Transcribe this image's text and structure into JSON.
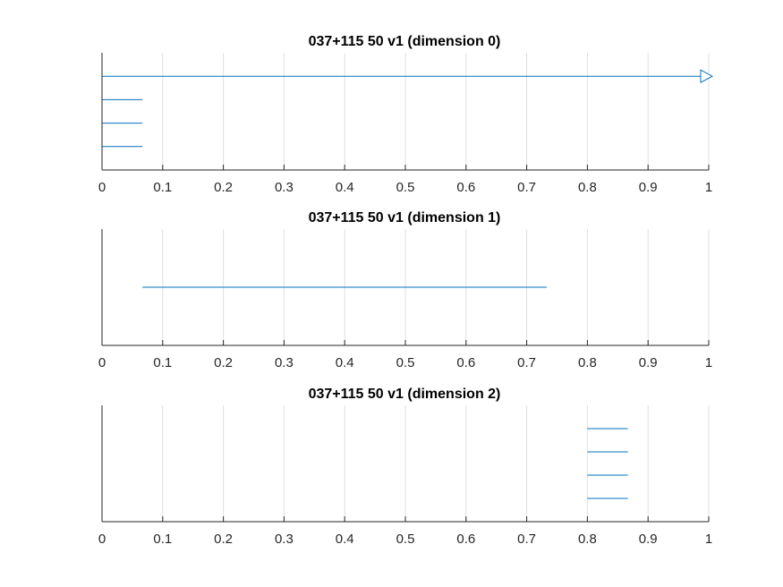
{
  "colors": {
    "series": "#0072BD",
    "grid": "#dfdfdf",
    "axis": "#262626"
  },
  "chart_data": [
    {
      "type": "barcode",
      "title": "037+115 50 v1 (dimension 0)",
      "xlim": [
        0,
        1
      ],
      "xticks": [
        0,
        0.1,
        0.2,
        0.3,
        0.4,
        0.5,
        0.6,
        0.7,
        0.8,
        0.9,
        1
      ],
      "xtick_labels": [
        "0",
        "0.1",
        "0.2",
        "0.3",
        "0.4",
        "0.5",
        "0.6",
        "0.7",
        "0.8",
        "0.9",
        "1"
      ],
      "grid": true,
      "intervals": [
        {
          "birth": 0,
          "death": 1,
          "infinite": true
        },
        {
          "birth": 0,
          "death": 0.0667,
          "infinite": false
        },
        {
          "birth": 0,
          "death": 0.0667,
          "infinite": false
        },
        {
          "birth": 0,
          "death": 0.0667,
          "infinite": false
        }
      ]
    },
    {
      "type": "barcode",
      "title": "037+115 50 v1 (dimension 1)",
      "xlim": [
        0,
        1
      ],
      "xticks": [
        0,
        0.1,
        0.2,
        0.3,
        0.4,
        0.5,
        0.6,
        0.7,
        0.8,
        0.9,
        1
      ],
      "xtick_labels": [
        "0",
        "0.1",
        "0.2",
        "0.3",
        "0.4",
        "0.5",
        "0.6",
        "0.7",
        "0.8",
        "0.9",
        "1"
      ],
      "grid": true,
      "intervals": [
        {
          "birth": 0.0667,
          "death": 0.733,
          "infinite": false
        }
      ]
    },
    {
      "type": "barcode",
      "title": "037+115 50 v1 (dimension 2)",
      "xlim": [
        0,
        1
      ],
      "xticks": [
        0,
        0.1,
        0.2,
        0.3,
        0.4,
        0.5,
        0.6,
        0.7,
        0.8,
        0.9,
        1
      ],
      "xtick_labels": [
        "0",
        "0.1",
        "0.2",
        "0.3",
        "0.4",
        "0.5",
        "0.6",
        "0.7",
        "0.8",
        "0.9",
        "1"
      ],
      "grid": true,
      "intervals": [
        {
          "birth": 0.8,
          "death": 0.8667,
          "infinite": false
        },
        {
          "birth": 0.8,
          "death": 0.8667,
          "infinite": false
        },
        {
          "birth": 0.8,
          "death": 0.8667,
          "infinite": false
        },
        {
          "birth": 0.8,
          "death": 0.8667,
          "infinite": false
        }
      ]
    }
  ]
}
